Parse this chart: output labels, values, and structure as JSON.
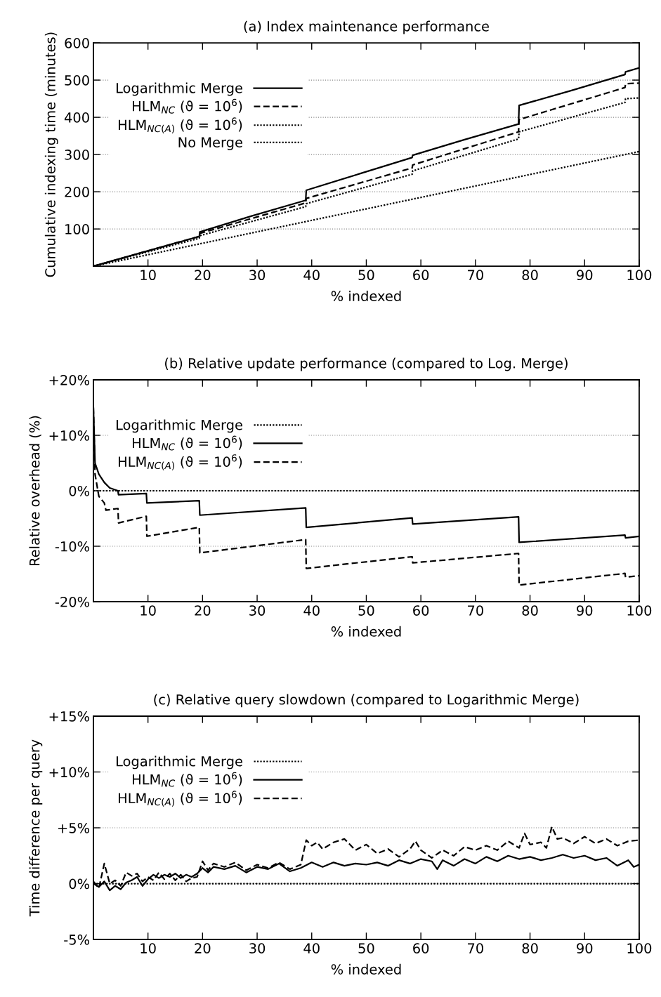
{
  "chart_data": [
    {
      "type": "line",
      "title": "(a) Index maintenance performance",
      "xlabel": "% indexed",
      "ylabel": "Cumulative indexing time (minutes)",
      "xlim": [
        0,
        100
      ],
      "xticks": [
        10,
        20,
        30,
        40,
        50,
        60,
        70,
        80,
        90,
        100
      ],
      "ylim": [
        0,
        600
      ],
      "yticks": [
        100,
        200,
        300,
        400,
        500,
        600
      ],
      "grid": "y",
      "legend": "top left",
      "series": [
        {
          "name": "Logarithmic Merge",
          "color": "#000000",
          "line_style": "solid",
          "x": [
            0,
            9.7,
            19.4,
            19.5,
            29,
            38.9,
            39,
            48.7,
            58.4,
            58.5,
            68,
            77.9,
            78,
            87.6,
            97.4,
            97.5,
            100
          ],
          "values": [
            0,
            40,
            80,
            92,
            135,
            177,
            204,
            248,
            292,
            298,
            340,
            382,
            432,
            472,
            515,
            522,
            533
          ]
        },
        {
          "name": "HLM$_{NC}$ (ϑ = 10$^{6}$)",
          "color": "#000000",
          "line_style": "dashed",
          "x": [
            0,
            19.4,
            19.5,
            38.9,
            39,
            58.4,
            58.5,
            77.9,
            78,
            97.4,
            97.5,
            100
          ],
          "values": [
            0,
            80,
            88,
            170,
            182,
            264,
            272,
            361,
            394,
            480,
            490,
            492
          ]
        },
        {
          "name": "HLM$_{NC(A)}$ (ϑ = 10$^{6}$)",
          "color": "#000000",
          "line_style": "dotted",
          "x": [
            0,
            19.4,
            19.5,
            38.9,
            39,
            58.4,
            58.5,
            77.9,
            78,
            97.4,
            97.5,
            100
          ],
          "values": [
            0,
            75,
            82,
            160,
            168,
            247,
            256,
            342,
            361,
            440,
            450,
            452
          ]
        },
        {
          "name": "No Merge",
          "color": "#000000",
          "line_style": "dotted",
          "x": [
            0,
            100
          ],
          "values": [
            0,
            308
          ]
        }
      ]
    },
    {
      "type": "line",
      "title": "(b) Relative update performance (compared to Log. Merge)",
      "xlabel": "% indexed",
      "ylabel": "Relative overhead (%)",
      "xlim": [
        0,
        100
      ],
      "xticks": [
        10,
        20,
        30,
        40,
        50,
        60,
        70,
        80,
        90,
        100
      ],
      "ylim": [
        -20,
        20
      ],
      "yticks": [
        {
          "value": -20,
          "label": "-20%"
        },
        {
          "value": -10,
          "label": "-10%"
        },
        {
          "value": 0,
          "label": "0%"
        },
        {
          "value": 10,
          "label": "+10%"
        },
        {
          "value": 20,
          "label": "+20%"
        }
      ],
      "grid": "y",
      "legend": "top left",
      "series": [
        {
          "name": "Logarithmic Merge",
          "color": "#000000",
          "line_style": "dotted",
          "x": [
            0,
            100
          ],
          "values": [
            0,
            0
          ]
        },
        {
          "name": "HLM$_{NC}$ (ϑ = 10$^{6}$)",
          "color": "#000000",
          "line_style": "solid",
          "x": [
            0,
            0.3,
            1,
            2,
            3,
            4.5,
            4.6,
            9.7,
            9.8,
            19.4,
            19.5,
            38.9,
            39,
            58.4,
            58.5,
            77.9,
            78,
            97.4,
            97.5,
            100
          ],
          "values": [
            15,
            5,
            3,
            1.5,
            0.5,
            0,
            -0.7,
            -0.5,
            -2.2,
            -1.8,
            -4.4,
            -3.1,
            -6.6,
            -4.9,
            -6.0,
            -4.7,
            -9.3,
            -8.0,
            -8.5,
            -8.2
          ]
        },
        {
          "name": "HLM$_{NC(A)}$ (ϑ = 10$^{6}$)",
          "color": "#000000",
          "line_style": "dashed",
          "x": [
            0,
            0.3,
            1,
            2,
            2.3,
            4.5,
            4.6,
            9.7,
            9.8,
            19.4,
            19.5,
            38.9,
            39,
            58.4,
            58.5,
            77.9,
            78,
            97.4,
            97.5,
            100
          ],
          "values": [
            15,
            3,
            -1,
            -2.2,
            -3.5,
            -3.2,
            -5.8,
            -4.6,
            -8.2,
            -6.6,
            -11.2,
            -8.8,
            -14.0,
            -11.9,
            -13.0,
            -11.3,
            -17.0,
            -14.9,
            -15.6,
            -15.3
          ]
        }
      ]
    },
    {
      "type": "line",
      "title": "(c) Relative query slowdown (compared to Logarithmic Merge)",
      "xlabel": "% indexed",
      "ylabel": "Time difference per query",
      "xlim": [
        0,
        100
      ],
      "xticks": [
        10,
        20,
        30,
        40,
        50,
        60,
        70,
        80,
        90,
        100
      ],
      "ylim": [
        -5,
        15
      ],
      "yticks": [
        {
          "value": -5,
          "label": "-5%"
        },
        {
          "value": 0,
          "label": "0%"
        },
        {
          "value": 5,
          "label": "+5%"
        },
        {
          "value": 10,
          "label": "+10%"
        },
        {
          "value": 15,
          "label": "+15%"
        }
      ],
      "grid": "y",
      "legend": "top left",
      "series": [
        {
          "name": "Logarithmic Merge",
          "color": "#000000",
          "line_style": "dotted",
          "x": [
            0,
            100
          ],
          "values": [
            0,
            0
          ]
        },
        {
          "name": "HLM$_{NC}$ (ϑ = 10$^{6}$)",
          "color": "#000000",
          "line_style": "solid",
          "x": [
            0,
            1,
            2,
            3,
            4,
            5,
            6,
            7,
            8,
            9,
            10,
            11,
            12,
            13,
            14,
            15,
            16,
            17,
            18,
            19,
            20,
            21,
            22,
            24,
            26,
            28,
            30,
            32,
            34,
            36,
            38,
            40,
            42,
            44,
            46,
            48,
            50,
            52,
            54,
            56,
            58,
            60,
            62,
            63,
            64,
            66,
            68,
            70,
            72,
            74,
            76,
            78,
            80,
            82,
            84,
            86,
            88,
            90,
            92,
            94,
            96,
            98,
            99,
            100
          ],
          "values": [
            0,
            -0.3,
            0.2,
            -0.6,
            -0.2,
            -0.5,
            0.1,
            0.3,
            0.6,
            -0.2,
            0.4,
            0.8,
            0.5,
            0.8,
            0.6,
            0.9,
            0.5,
            0.8,
            0.6,
            0.9,
            1.4,
            1.0,
            1.5,
            1.3,
            1.6,
            1.0,
            1.5,
            1.3,
            1.8,
            1.1,
            1.4,
            1.9,
            1.5,
            1.9,
            1.6,
            1.8,
            1.7,
            1.9,
            1.6,
            2.1,
            1.8,
            2.2,
            2.0,
            1.3,
            2.1,
            1.6,
            2.2,
            1.8,
            2.4,
            2.0,
            2.5,
            2.2,
            2.4,
            2.1,
            2.3,
            2.6,
            2.3,
            2.5,
            2.1,
            2.3,
            1.6,
            2.1,
            1.5,
            1.7
          ]
        },
        {
          "name": "HLM$_{NC(A)}$ (ϑ = 10$^{6}$)",
          "color": "#000000",
          "line_style": "dashed",
          "x": [
            0,
            1,
            2,
            3,
            4,
            5,
            6,
            7,
            8,
            9,
            10,
            11,
            12,
            13,
            14,
            15,
            16,
            17,
            18,
            19,
            20,
            21,
            22,
            24,
            26,
            28,
            30,
            32,
            34,
            36,
            38,
            39,
            40,
            41,
            42,
            44,
            46,
            48,
            50,
            52,
            54,
            56,
            58,
            59,
            60,
            62,
            64,
            66,
            68,
            70,
            72,
            74,
            76,
            78,
            79,
            80,
            82,
            83,
            84,
            85,
            86,
            88,
            90,
            92,
            94,
            96,
            98,
            100
          ],
          "values": [
            0.2,
            -0.4,
            1.8,
            0,
            0.3,
            -0.2,
            1.0,
            0.7,
            0.9,
            0.2,
            0.6,
            0.3,
            1.0,
            0.4,
            0.9,
            0.3,
            0.8,
            0.2,
            0.5,
            0.6,
            2.0,
            1.2,
            1.8,
            1.5,
            1.9,
            1.2,
            1.7,
            1.4,
            1.9,
            1.3,
            1.7,
            3.9,
            3.4,
            3.7,
            3.1,
            3.7,
            4.0,
            3.0,
            3.5,
            2.7,
            3.1,
            2.4,
            3.1,
            3.8,
            3.0,
            2.3,
            3.0,
            2.5,
            3.3,
            3.0,
            3.4,
            3.0,
            3.8,
            3.2,
            4.5,
            3.5,
            3.7,
            3.2,
            5.1,
            4.0,
            4.1,
            3.6,
            4.2,
            3.6,
            4.0,
            3.4,
            3.8,
            3.9
          ]
        }
      ]
    }
  ]
}
